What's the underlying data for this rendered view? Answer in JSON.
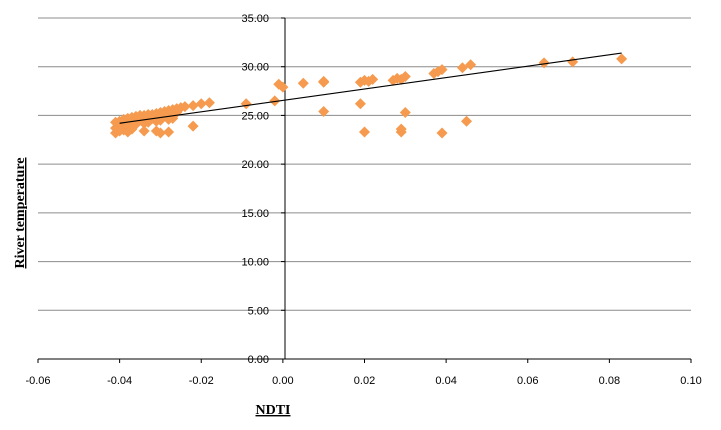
{
  "chart_data": {
    "type": "scatter",
    "xlabel": "NDTI",
    "ylabel": "River temperature",
    "xlim": [
      -0.06,
      0.1
    ],
    "ylim": [
      0,
      35
    ],
    "x_ticks": [
      "-0.06",
      "-0.04",
      "-0.02",
      "0.00",
      "0.02",
      "0.04",
      "0.06",
      "0.08",
      "0.10"
    ],
    "y_ticks": [
      "0.00",
      "5.00",
      "10.00",
      "15.00",
      "20.00",
      "25.00",
      "30.00",
      "35.00"
    ],
    "grid": "horizontal",
    "marker": "diamond",
    "colors": {
      "marker": "#f59a4e",
      "trendline": "#000000",
      "grid": "#8c8c8c",
      "axis": "#000000"
    },
    "trendline": {
      "x": [
        -0.04,
        0.083
      ],
      "y": [
        24.2,
        31.4
      ]
    },
    "series": [
      {
        "x": [
          -0.041,
          -0.04,
          -0.039,
          -0.038,
          -0.037,
          -0.036,
          -0.035,
          -0.034,
          -0.033,
          -0.032,
          -0.031,
          -0.03,
          -0.029,
          -0.028,
          -0.027,
          -0.026,
          -0.025,
          -0.024,
          -0.022,
          -0.02,
          -0.018,
          -0.04,
          -0.039,
          -0.038,
          -0.037,
          -0.036,
          -0.035,
          -0.033,
          -0.032,
          -0.031,
          -0.03,
          -0.029,
          -0.028,
          -0.027,
          -0.026,
          -0.041,
          -0.04,
          -0.039,
          -0.038,
          -0.036,
          -0.034,
          -0.033,
          -0.031,
          -0.03,
          -0.028,
          -0.027,
          -0.041,
          -0.04,
          -0.039,
          -0.038,
          -0.037,
          -0.034,
          -0.031,
          -0.03,
          -0.028,
          -0.022,
          -0.009,
          -0.002,
          -0.001,
          0.0,
          0.005,
          0.01,
          0.01,
          0.019,
          0.02,
          0.021,
          0.022,
          0.027,
          0.028,
          0.029,
          0.03,
          0.037,
          0.038,
          0.039,
          0.044,
          0.046,
          0.064,
          0.071,
          0.083,
          0.01,
          0.019,
          0.02,
          0.029,
          0.029,
          0.03,
          0.039,
          0.045
        ],
        "y": [
          24.3,
          24.4,
          24.6,
          24.7,
          24.8,
          24.9,
          25.0,
          25.0,
          25.1,
          25.1,
          25.2,
          25.3,
          25.4,
          25.5,
          25.6,
          25.7,
          25.8,
          25.9,
          26.0,
          26.2,
          26.3,
          24.0,
          24.1,
          24.2,
          24.4,
          24.5,
          24.5,
          24.6,
          24.7,
          24.8,
          24.9,
          25.0,
          25.1,
          25.2,
          25.3,
          23.7,
          23.8,
          23.9,
          24.0,
          24.1,
          24.2,
          24.3,
          24.4,
          24.5,
          24.6,
          24.7,
          23.2,
          23.4,
          23.5,
          23.3,
          23.6,
          23.4,
          23.4,
          23.2,
          23.3,
          23.9,
          26.2,
          26.5,
          28.2,
          27.9,
          28.3,
          28.4,
          28.5,
          28.4,
          28.6,
          28.5,
          28.7,
          28.6,
          28.8,
          28.7,
          29.0,
          29.3,
          29.5,
          29.7,
          29.9,
          30.2,
          30.4,
          30.5,
          30.8,
          25.4,
          26.2,
          23.3,
          23.3,
          23.6,
          25.3,
          23.2,
          24.4
        ]
      }
    ]
  }
}
